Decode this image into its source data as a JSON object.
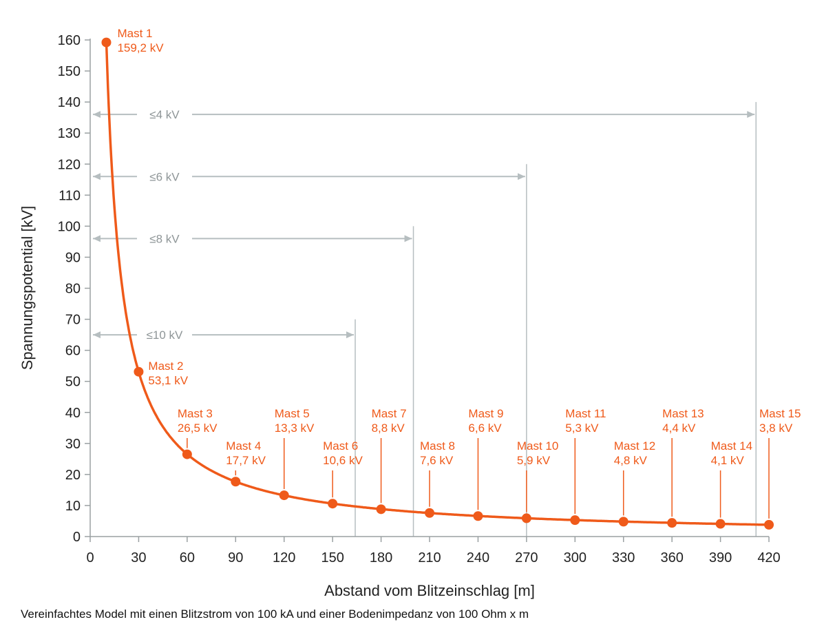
{
  "chart_data": {
    "type": "line",
    "xlabel": "Abstand vom Blitzeinschlag [m]",
    "ylabel": "Spannungspotential  [kV]",
    "xlim": [
      0,
      420
    ],
    "ylim": [
      0,
      160
    ],
    "xticks": [
      0,
      30,
      60,
      90,
      120,
      150,
      180,
      210,
      240,
      270,
      300,
      330,
      360,
      390,
      420
    ],
    "yticks": [
      0,
      10,
      20,
      30,
      40,
      50,
      60,
      70,
      80,
      90,
      100,
      110,
      120,
      130,
      140,
      150,
      160
    ],
    "grid": false,
    "series": [
      {
        "points": [
          {
            "x": 10,
            "y": 159.2,
            "name": "Mast 1",
            "value_label": "159,2 kV"
          },
          {
            "x": 30,
            "y": 53.1,
            "name": "Mast 2",
            "value_label": "53,1 kV"
          },
          {
            "x": 60,
            "y": 26.5,
            "name": "Mast 3",
            "value_label": "26,5 kV"
          },
          {
            "x": 90,
            "y": 17.7,
            "name": "Mast 4",
            "value_label": "17,7 kV"
          },
          {
            "x": 120,
            "y": 13.3,
            "name": "Mast 5",
            "value_label": "13,3 kV"
          },
          {
            "x": 150,
            "y": 10.6,
            "name": "Mast 6",
            "value_label": "10,6 kV"
          },
          {
            "x": 180,
            "y": 8.8,
            "name": "Mast 7",
            "value_label": "8,8 kV"
          },
          {
            "x": 210,
            "y": 7.6,
            "name": "Mast 8",
            "value_label": "7,6 kV"
          },
          {
            "x": 240,
            "y": 6.6,
            "name": "Mast 9",
            "value_label": "6,6 kV"
          },
          {
            "x": 270,
            "y": 5.9,
            "name": "Mast 10",
            "value_label": "5,9 kV"
          },
          {
            "x": 300,
            "y": 5.3,
            "name": "Mast 11",
            "value_label": "5,3 kV"
          },
          {
            "x": 330,
            "y": 4.8,
            "name": "Mast 12",
            "value_label": "4,8 kV"
          },
          {
            "x": 360,
            "y": 4.4,
            "name": "Mast 13",
            "value_label": "4,4 kV"
          },
          {
            "x": 390,
            "y": 4.1,
            "name": "Mast 14",
            "value_label": "4,1 kV"
          },
          {
            "x": 420,
            "y": 3.8,
            "name": "Mast 15",
            "value_label": "3,8 kV"
          }
        ]
      }
    ],
    "ranges": [
      {
        "label": "≤4 kV",
        "x_end": 412,
        "y": 136,
        "line_top": 140
      },
      {
        "label": "≤6 kV",
        "x_end": 270,
        "y": 116,
        "line_top": 120
      },
      {
        "label": "≤8 kV",
        "x_end": 200,
        "y": 96,
        "line_top": 100
      },
      {
        "label": "≤10 kV",
        "x_end": 164,
        "y": 65,
        "line_top": 70
      }
    ],
    "caption": "Vereinfachtes Model mit einen Blitzstrom von 100 kA und einer Bodenimpedanz von 100 Ohm x m"
  },
  "colors": {
    "series": "#ef5a1a",
    "ranges": "#b6bec0",
    "axis": "#9aa0a2",
    "text": "#222222"
  }
}
